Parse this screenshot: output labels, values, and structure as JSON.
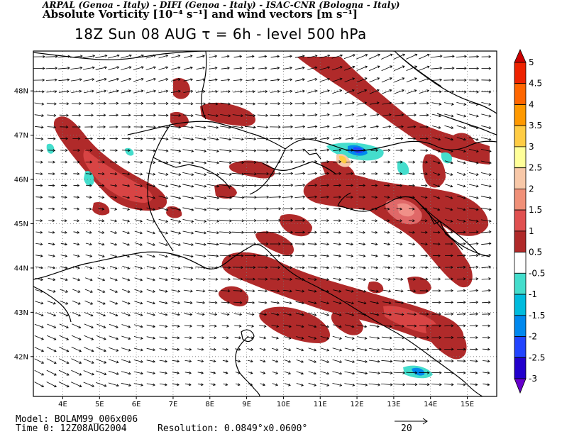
{
  "header": {
    "line1": "ARPAL (Genoa - Italy)  -  DIFI (Genoa - Italy)  -  ISAC-CNR (Bologna - Italy)",
    "line2": "Absolute Vorticity [10⁻⁴ s⁻¹] and wind vectors [m s⁻¹]",
    "line3": "18Z Sun 08 AUG  τ = 6h  -  level 500 hPa"
  },
  "map": {
    "lon_labels": [
      "4E",
      "5E",
      "6E",
      "7E",
      "8E",
      "9E",
      "10E",
      "11E",
      "12E",
      "13E",
      "14E",
      "15E"
    ],
    "lat_labels": [
      "48N",
      "47N",
      "46N",
      "45N",
      "44N",
      "43N",
      "42N"
    ],
    "lon_range": [
      3.2,
      15.8
    ],
    "lat_range": [
      41.1,
      48.9
    ]
  },
  "colorbar": {
    "levels": [
      "5",
      "4.5",
      "4",
      "3.5",
      "3",
      "2.5",
      "2",
      "1.5",
      "1",
      "0.5",
      "-0.5",
      "-1",
      "-1.5",
      "-2",
      "-2.5",
      "-3"
    ],
    "colors": [
      "#cc0000",
      "#ee2200",
      "#ff6600",
      "#ff9900",
      "#ffcc44",
      "#ffff99",
      "#f8c8a8",
      "#f09078",
      "#e05050",
      "#b02a2a",
      "#ffffff",
      "#44ddcc",
      "#00bbdd",
      "#0088ee",
      "#2244ff",
      "#2200cc",
      "#6600cc"
    ]
  },
  "footer": {
    "model": "Model: BOLAM99_006x006",
    "time": "Time 0: 12Z08AUG2004",
    "resolution": "Resolution: 0.0849°x0.0600°",
    "ref_vector": "20"
  }
}
